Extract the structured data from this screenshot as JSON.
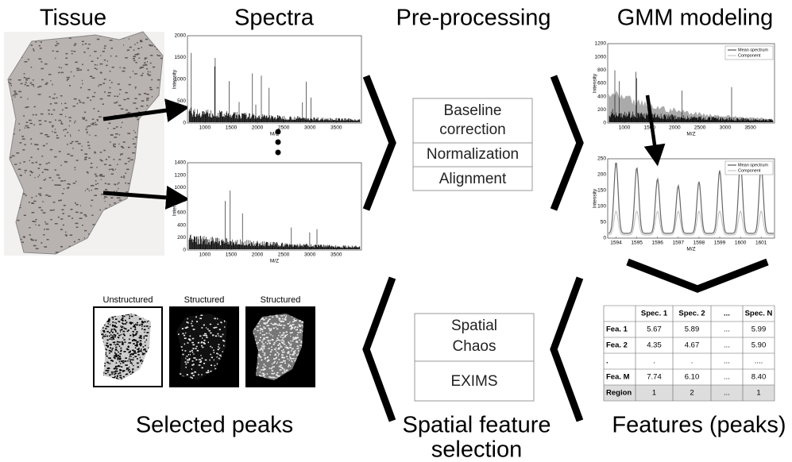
{
  "headers": {
    "tissue": "Tissue",
    "spectra": "Spectra",
    "preprocessing": "Pre-processing",
    "gmm": "GMM modeling",
    "selected": "Selected peaks",
    "spatial": [
      "Spatial feature",
      "selection"
    ],
    "features": "Features (peaks)"
  },
  "spectra_plots": [
    {
      "y_label": "Intensity",
      "x_label": "M/Z",
      "yticks": [
        0,
        500,
        1000,
        1500,
        2000
      ],
      "xticks": [
        1000,
        1500,
        2000,
        2500,
        3000,
        3500
      ]
    },
    {
      "y_label": "Intensity",
      "x_label": "M/Z",
      "yticks": [
        0,
        200,
        400,
        600,
        800,
        1000,
        1200,
        1400
      ],
      "xticks": [
        1000,
        1500,
        2000,
        2500,
        3000,
        3500
      ]
    }
  ],
  "gmm_plots": [
    {
      "y_label": "Intensity",
      "x_label": "M/Z",
      "yticks": [
        0,
        200,
        400,
        600,
        800,
        1000,
        1200
      ],
      "xticks": [
        1000,
        1500,
        2000,
        2500,
        3000,
        3500
      ],
      "legend": [
        "Mean spectrum",
        "Component"
      ]
    },
    {
      "y_label": "Intensity",
      "x_label": "M/Z",
      "yticks": [
        0,
        50,
        100,
        150,
        200,
        250
      ],
      "xticks": [
        1594,
        1595,
        1596,
        1597,
        1598,
        1599,
        1600,
        1601
      ],
      "legend": [
        "Mean spectrum",
        "Component"
      ]
    }
  ],
  "preprocessing_steps": [
    [
      "Baseline",
      "correction"
    ],
    [
      "Normalization"
    ],
    [
      "Alignment"
    ]
  ],
  "feature_selection_methods": [
    [
      "Spatial",
      "Chaos"
    ],
    [
      "EXIMS"
    ]
  ],
  "features_table": {
    "header": [
      "Spec. 1",
      "Spec. 2",
      "...",
      "Spec. N"
    ],
    "rows": [
      [
        "Fea. 1",
        "5.67",
        "5.89",
        "...",
        "5.99"
      ],
      [
        "Fea. 2",
        "4.35",
        "4.67",
        "...",
        "5.90"
      ],
      [
        ".",
        ".",
        ".",
        "...",
        "...."
      ],
      [
        "Fea. M",
        "7.74",
        "6.10",
        "...",
        "8.40"
      ],
      [
        "Region",
        "1",
        "2",
        "...",
        "1"
      ]
    ]
  },
  "selected_peaks_images": [
    "Unstructured",
    "Structured",
    "Structured"
  ]
}
